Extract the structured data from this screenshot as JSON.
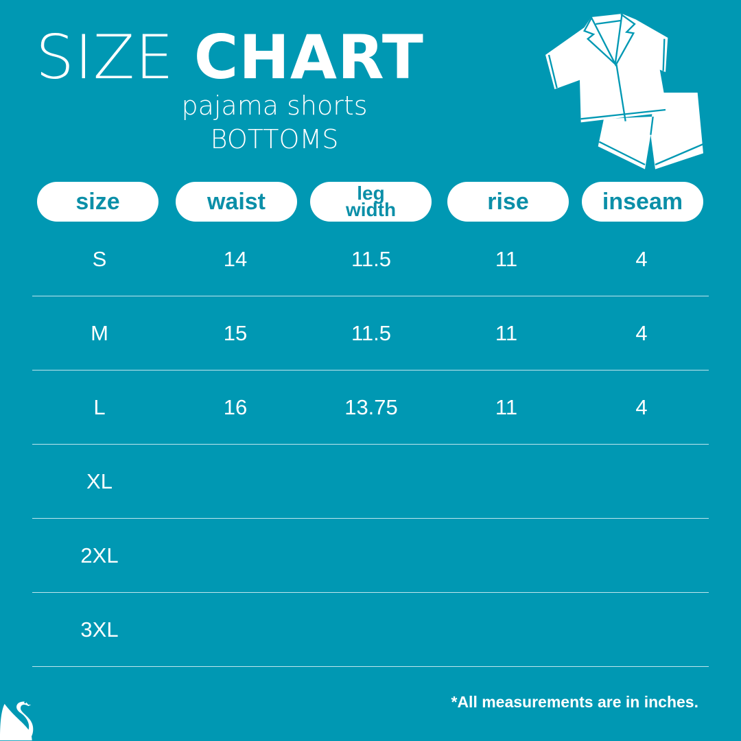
{
  "header": {
    "title_light": "SIZE",
    "title_bold": "CHART",
    "subtitle": "pajama shorts",
    "category": "BOTTOMS",
    "illustration_icon": "pajama-set-icon"
  },
  "table": {
    "columns": [
      "size",
      "waist",
      "leg width",
      "rise",
      "inseam"
    ],
    "column_lines": [
      [
        "size"
      ],
      [
        "waist"
      ],
      [
        "leg",
        "width"
      ],
      [
        "rise"
      ],
      [
        "inseam"
      ]
    ],
    "rows": [
      [
        "S",
        "14",
        "11.5",
        "11",
        "4"
      ],
      [
        "M",
        "15",
        "11.5",
        "11",
        "4"
      ],
      [
        "L",
        "16",
        "13.75",
        "11",
        "4"
      ],
      [
        "XL",
        "",
        "",
        "",
        ""
      ],
      [
        "2XL",
        "",
        "",
        "",
        ""
      ],
      [
        "3XL",
        "",
        "",
        "",
        ""
      ]
    ]
  },
  "footer": {
    "note": "*All measurements are in inches.",
    "logo_icon": "swan-logo-icon"
  },
  "colors": {
    "background": "#0098b3",
    "pill": "#ffffff",
    "pill_text": "#0b8fa8"
  }
}
